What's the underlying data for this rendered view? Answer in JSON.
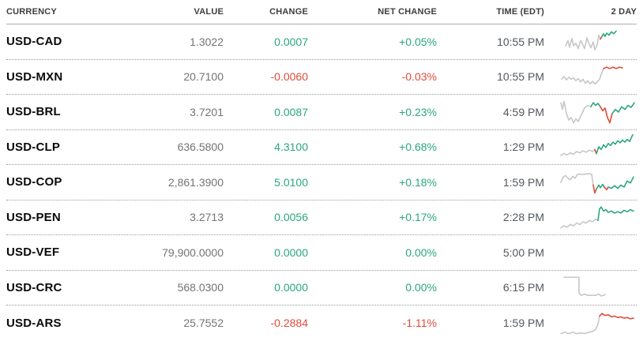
{
  "colors": {
    "positive": "#2aa87a",
    "negative": "#e04b3b",
    "spark_gray": "#c7c7c7"
  },
  "table": {
    "columns": [
      "CURRENCY",
      "VALUE",
      "CHANGE",
      "NET CHANGE",
      "TIME (EDT)",
      "2 DAY"
    ]
  },
  "rows": [
    {
      "pair": "USD-CAD",
      "value": "1.3022",
      "change": "0.0007",
      "net_change": "+0.05%",
      "direction": "up",
      "time": "10:55 PM",
      "sparkline": {
        "segments": [
          {
            "color": "gray",
            "points": [
              [
                10,
                26
              ],
              [
                13,
                18
              ],
              [
                15,
                28
              ],
              [
                18,
                15
              ],
              [
                20,
                26
              ],
              [
                23,
                22
              ],
              [
                26,
                30
              ],
              [
                29,
                18
              ],
              [
                32,
                25
              ],
              [
                34,
                30
              ],
              [
                37,
                14
              ],
              [
                40,
                24
              ],
              [
                42,
                29
              ],
              [
                45,
                20
              ],
              [
                47,
                32
              ],
              [
                50,
                24
              ],
              [
                52,
                10
              ],
              [
                54,
                16
              ]
            ]
          },
          {
            "color": "down",
            "points": [
              [
                54,
                16
              ],
              [
                56,
                12
              ]
            ]
          },
          {
            "color": "up",
            "points": [
              [
                56,
                12
              ],
              [
                58,
                8
              ],
              [
                60,
                12
              ],
              [
                62,
                7
              ],
              [
                65,
                10
              ],
              [
                68,
                5
              ],
              [
                71,
                8
              ],
              [
                74,
                4
              ]
            ]
          }
        ]
      }
    },
    {
      "pair": "USD-MXN",
      "value": "20.7100",
      "change": "-0.0060",
      "net_change": "-0.03%",
      "direction": "down",
      "time": "10:55 PM",
      "sparkline": {
        "segments": [
          {
            "color": "gray",
            "points": [
              [
                5,
                24
              ],
              [
                8,
                20
              ],
              [
                11,
                25
              ],
              [
                14,
                21
              ],
              [
                17,
                24
              ],
              [
                20,
                22
              ],
              [
                23,
                26
              ],
              [
                26,
                23
              ],
              [
                29,
                28
              ],
              [
                32,
                24
              ],
              [
                35,
                30
              ],
              [
                38,
                26
              ],
              [
                41,
                31
              ],
              [
                44,
                27
              ],
              [
                47,
                31
              ],
              [
                50,
                28
              ],
              [
                53,
                24
              ],
              [
                56,
                14
              ],
              [
                58,
                8
              ]
            ]
          },
          {
            "color": "down",
            "points": [
              [
                58,
                8
              ],
              [
                62,
                6
              ],
              [
                66,
                8
              ],
              [
                70,
                6
              ],
              [
                74,
                8
              ],
              [
                78,
                6
              ],
              [
                82,
                7
              ]
            ]
          }
        ]
      }
    },
    {
      "pair": "USD-BRL",
      "value": "3.7201",
      "change": "0.0087",
      "net_change": "+0.23%",
      "direction": "up",
      "time": "4:59 PM",
      "sparkline": {
        "segments": [
          {
            "color": "gray",
            "points": [
              [
                4,
                6
              ],
              [
                6,
                16
              ],
              [
                8,
                4
              ],
              [
                11,
                22
              ],
              [
                14,
                32
              ],
              [
                17,
                28
              ],
              [
                20,
                36
              ],
              [
                23,
                30
              ],
              [
                26,
                34
              ],
              [
                30,
                24
              ],
              [
                34,
                14
              ],
              [
                38,
                10
              ],
              [
                42,
                12
              ]
            ]
          },
          {
            "color": "up",
            "points": [
              [
                42,
                12
              ],
              [
                45,
                6
              ],
              [
                48,
                10
              ],
              [
                51,
                7
              ],
              [
                54,
                12
              ]
            ]
          },
          {
            "color": "down",
            "points": [
              [
                54,
                12
              ],
              [
                57,
                18
              ],
              [
                60,
                14
              ],
              [
                63,
                28
              ],
              [
                66,
                36
              ],
              [
                69,
                22
              ]
            ]
          },
          {
            "color": "up",
            "points": [
              [
                69,
                22
              ],
              [
                73,
                16
              ],
              [
                77,
                20
              ],
              [
                81,
                12
              ],
              [
                85,
                16
              ],
              [
                89,
                10
              ],
              [
                93,
                13
              ],
              [
                97,
                6
              ]
            ]
          }
        ]
      }
    },
    {
      "pair": "USD-CLP",
      "value": "636.5800",
      "change": "4.3100",
      "net_change": "+0.68%",
      "direction": "up",
      "time": "1:29 PM",
      "sparkline": {
        "segments": [
          {
            "color": "gray",
            "points": [
              [
                4,
                33
              ],
              [
                8,
                30
              ],
              [
                12,
                32
              ],
              [
                16,
                29
              ],
              [
                20,
                31
              ],
              [
                24,
                27
              ],
              [
                28,
                29
              ],
              [
                32,
                26
              ],
              [
                36,
                28
              ],
              [
                40,
                25
              ],
              [
                44,
                27
              ],
              [
                47,
                24
              ]
            ]
          },
          {
            "color": "down",
            "points": [
              [
                47,
                24
              ],
              [
                49,
                30
              ]
            ]
          },
          {
            "color": "up",
            "points": [
              [
                49,
                30
              ],
              [
                52,
                20
              ],
              [
                55,
                24
              ],
              [
                58,
                17
              ],
              [
                61,
                21
              ],
              [
                64,
                15
              ],
              [
                67,
                18
              ],
              [
                70,
                13
              ],
              [
                73,
                16
              ],
              [
                76,
                11
              ],
              [
                79,
                14
              ],
              [
                82,
                10
              ],
              [
                85,
                13
              ],
              [
                88,
                9
              ],
              [
                91,
                12
              ],
              [
                95,
                2
              ]
            ]
          }
        ]
      }
    },
    {
      "pair": "USD-COP",
      "value": "2,861.3900",
      "change": "5.0100",
      "net_change": "+0.18%",
      "direction": "up",
      "time": "1:59 PM",
      "sparkline": {
        "segments": [
          {
            "color": "gray",
            "points": [
              [
                4,
                20
              ],
              [
                7,
                12
              ],
              [
                10,
                10
              ],
              [
                13,
                14
              ],
              [
                16,
                16
              ],
              [
                19,
                11
              ],
              [
                22,
                14
              ],
              [
                25,
                8
              ],
              [
                33,
                8
              ],
              [
                40,
                7
              ],
              [
                43,
                8
              ],
              [
                45,
                24
              ]
            ]
          },
          {
            "color": "down",
            "points": [
              [
                45,
                24
              ],
              [
                47,
                36
              ],
              [
                49,
                30
              ]
            ]
          },
          {
            "color": "up",
            "points": [
              [
                49,
                30
              ],
              [
                52,
                24
              ],
              [
                54,
                28
              ],
              [
                57,
                23
              ],
              [
                59,
                27
              ]
            ]
          },
          {
            "color": "down",
            "points": [
              [
                59,
                27
              ],
              [
                62,
                31
              ],
              [
                64,
                27
              ]
            ]
          },
          {
            "color": "up",
            "points": [
              [
                64,
                27
              ],
              [
                68,
                29
              ],
              [
                72,
                25
              ],
              [
                76,
                29
              ],
              [
                80,
                24
              ],
              [
                84,
                27
              ],
              [
                88,
                18
              ],
              [
                92,
                21
              ],
              [
                96,
                12
              ]
            ]
          }
        ]
      }
    },
    {
      "pair": "USD-PEN",
      "value": "3.2713",
      "change": "0.0056",
      "net_change": "+0.17%",
      "direction": "up",
      "time": "2:28 PM",
      "sparkline": {
        "segments": [
          {
            "color": "gray",
            "points": [
              [
                4,
                36
              ],
              [
                8,
                33
              ],
              [
                12,
                35
              ],
              [
                16,
                31
              ],
              [
                20,
                33
              ],
              [
                24,
                29
              ],
              [
                28,
                31
              ],
              [
                32,
                27
              ],
              [
                36,
                29
              ],
              [
                40,
                25
              ],
              [
                44,
                27
              ],
              [
                48,
                23
              ],
              [
                51,
                25
              ]
            ]
          },
          {
            "color": "up",
            "points": [
              [
                51,
                25
              ],
              [
                53,
                8
              ],
              [
                55,
                5
              ],
              [
                58,
                11
              ],
              [
                61,
                9
              ],
              [
                64,
                13
              ],
              [
                68,
                11
              ],
              [
                72,
                14
              ],
              [
                76,
                12
              ],
              [
                80,
                14
              ],
              [
                84,
                10
              ],
              [
                88,
                12
              ],
              [
                92,
                9
              ],
              [
                96,
                11
              ]
            ]
          }
        ]
      }
    },
    {
      "pair": "USD-VEF",
      "value": "79,900.0000",
      "change": "0.0000",
      "net_change": "0.00%",
      "direction": "up",
      "time": "5:00 PM",
      "sparkline": {
        "segments": []
      }
    },
    {
      "pair": "USD-CRC",
      "value": "568.0300",
      "change": "0.0000",
      "net_change": "0.00%",
      "direction": "up",
      "time": "6:15 PM",
      "sparkline": {
        "segments": [
          {
            "color": "gray",
            "points": [
              [
                8,
                5
              ],
              [
                27,
                5
              ],
              [
                27,
                29
              ],
              [
                30,
                32
              ],
              [
                34,
                30
              ],
              [
                38,
                32
              ],
              [
                48,
                32
              ],
              [
                52,
                30
              ],
              [
                55,
                33
              ],
              [
                60,
                31
              ]
            ]
          }
        ]
      }
    },
    {
      "pair": "USD-ARS",
      "value": "25.7552",
      "change": "-0.2884",
      "net_change": "-1.11%",
      "direction": "down",
      "time": "1:59 PM",
      "sparkline": {
        "segments": [
          {
            "color": "gray",
            "points": [
              [
                4,
                36
              ],
              [
                9,
                34
              ],
              [
                14,
                36
              ],
              [
                19,
                34
              ],
              [
                24,
                36
              ],
              [
                29,
                35
              ],
              [
                34,
                36
              ],
              [
                39,
                34
              ],
              [
                44,
                33
              ],
              [
                48,
                30
              ],
              [
                51,
                22
              ],
              [
                53,
                10
              ]
            ]
          },
          {
            "color": "down",
            "points": [
              [
                53,
                10
              ],
              [
                56,
                6
              ],
              [
                60,
                9
              ],
              [
                64,
                8
              ],
              [
                68,
                11
              ],
              [
                72,
                10
              ],
              [
                76,
                12
              ],
              [
                80,
                11
              ],
              [
                84,
                13
              ],
              [
                88,
                12
              ],
              [
                92,
                14
              ],
              [
                96,
                13
              ]
            ]
          }
        ]
      }
    }
  ]
}
